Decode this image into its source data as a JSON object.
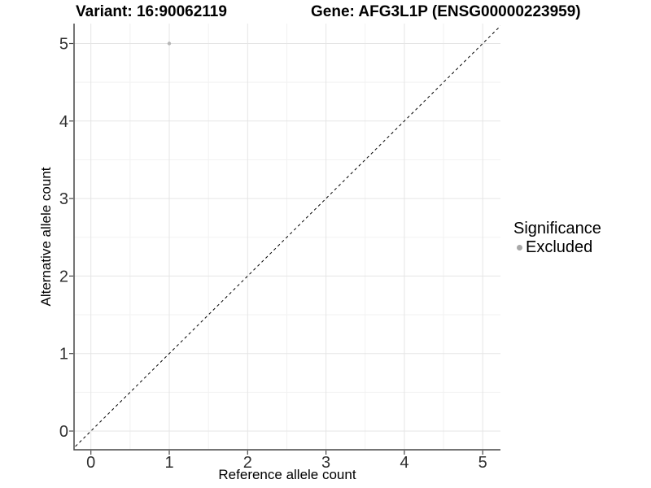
{
  "chart_data": {
    "type": "scatter",
    "titles": {
      "variant": "Variant: 16:90062119",
      "gene": "Gene: AFG3L1P (ENSG00000223959)"
    },
    "xlabel": "Reference allele count",
    "ylabel": "Alternative allele count",
    "xlim": [
      -0.25,
      5.25
    ],
    "ylim": [
      -0.25,
      5.25
    ],
    "x_major_ticks": [
      0,
      1,
      2,
      3,
      4,
      5
    ],
    "y_major_ticks": [
      0,
      1,
      2,
      3,
      4,
      5
    ],
    "x_minor_ticks": [
      0.5,
      1.5,
      2.5,
      3.5,
      4.5
    ],
    "y_minor_ticks": [
      0.5,
      1.5,
      2.5,
      3.5,
      4.5
    ],
    "grid": {
      "major_on": true,
      "minor_on": true
    },
    "identity_line": {
      "style": "dashed",
      "color": "#000000",
      "from": [
        -0.25,
        -0.25
      ],
      "to": [
        5.25,
        5.25
      ]
    },
    "points": [
      {
        "x": 1,
        "y": 5,
        "significance": "Excluded"
      }
    ],
    "colors": {
      "excluded_point": "#b6b6b6",
      "grid_major": "#e5e5e5",
      "grid_minor": "#f2f2f2",
      "axis": "#474747",
      "tick_text": "#303030",
      "legend_key": "#a8a8a8"
    },
    "legend": {
      "title": "Significance",
      "position": "right",
      "items": [
        {
          "label": "Excluded",
          "color": "#a8a8a8"
        }
      ]
    }
  }
}
